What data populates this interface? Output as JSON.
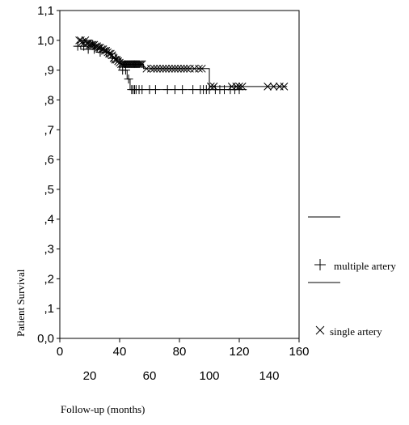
{
  "chart_data": {
    "type": "line",
    "xlabel": "Follow-up (months)",
    "ylabel": "Patient Survival",
    "xlim": [
      0,
      160
    ],
    "ylim": [
      0.0,
      1.1
    ],
    "x_ticks_major": [
      "0",
      "40",
      "80",
      "120",
      "160"
    ],
    "x_ticks_minor": [
      "20",
      "60",
      "100",
      "140"
    ],
    "y_ticks": [
      "0,0",
      ",1",
      ",2",
      ",3",
      ",4",
      ",5",
      ",6",
      ",7",
      ",8",
      ",9",
      "1,0",
      "1,1"
    ],
    "grid": false,
    "legend_position": "right",
    "series": [
      {
        "name": "multiple artery",
        "marker": "plus",
        "steps": [
          [
            10,
            0.98
          ],
          [
            14,
            0.97
          ],
          [
            25,
            0.96
          ],
          [
            34,
            0.94
          ],
          [
            40,
            0.9
          ],
          [
            45,
            0.87
          ],
          [
            47,
            0.835
          ],
          [
            97,
            0.835
          ],
          [
            125,
            0.835
          ]
        ],
        "censored": [
          [
            12,
            0.98
          ],
          [
            16,
            0.98
          ],
          [
            19,
            0.97
          ],
          [
            23,
            0.97
          ],
          [
            27,
            0.96
          ],
          [
            31,
            0.96
          ],
          [
            35,
            0.94
          ],
          [
            38,
            0.94
          ],
          [
            42,
            0.9
          ],
          [
            44,
            0.9
          ],
          [
            46,
            0.87
          ],
          [
            48,
            0.835
          ],
          [
            49,
            0.835
          ],
          [
            50,
            0.835
          ],
          [
            51,
            0.835
          ],
          [
            53,
            0.835
          ],
          [
            55,
            0.835
          ],
          [
            60,
            0.835
          ],
          [
            64,
            0.835
          ],
          [
            72,
            0.835
          ],
          [
            77,
            0.835
          ],
          [
            82,
            0.835
          ],
          [
            89,
            0.835
          ],
          [
            94,
            0.835
          ],
          [
            96,
            0.835
          ],
          [
            98,
            0.835
          ],
          [
            100,
            0.835
          ],
          [
            104,
            0.835
          ],
          [
            107,
            0.835
          ],
          [
            110,
            0.835
          ],
          [
            114,
            0.835
          ],
          [
            117,
            0.835
          ],
          [
            120,
            0.835
          ]
        ]
      },
      {
        "name": "single artery",
        "marker": "x",
        "steps": [
          [
            13,
            1.0
          ],
          [
            22,
            0.985
          ],
          [
            28,
            0.97
          ],
          [
            33,
            0.955
          ],
          [
            37,
            0.935
          ],
          [
            41,
            0.92
          ],
          [
            56,
            0.905
          ],
          [
            96,
            0.905
          ],
          [
            100,
            0.845
          ],
          [
            152,
            0.845
          ]
        ],
        "censored": [
          [
            13,
            1.0
          ],
          [
            14,
            1.0
          ],
          [
            15,
            0.995
          ],
          [
            16,
            0.99
          ],
          [
            17,
            1.0
          ],
          [
            18,
            0.99
          ],
          [
            19,
            0.99
          ],
          [
            20,
            0.985
          ],
          [
            21,
            0.985
          ],
          [
            22,
            0.985
          ],
          [
            23,
            0.985
          ],
          [
            24,
            0.98
          ],
          [
            25,
            0.98
          ],
          [
            26,
            0.975
          ],
          [
            27,
            0.975
          ],
          [
            28,
            0.97
          ],
          [
            29,
            0.97
          ],
          [
            30,
            0.965
          ],
          [
            31,
            0.965
          ],
          [
            32,
            0.96
          ],
          [
            33,
            0.955
          ],
          [
            34,
            0.955
          ],
          [
            35,
            0.95
          ],
          [
            36,
            0.94
          ],
          [
            37,
            0.935
          ],
          [
            38,
            0.935
          ],
          [
            39,
            0.93
          ],
          [
            40,
            0.925
          ],
          [
            41,
            0.92
          ],
          [
            42,
            0.92
          ],
          [
            43,
            0.92
          ],
          [
            44,
            0.92
          ],
          [
            45,
            0.92
          ],
          [
            46,
            0.92
          ],
          [
            47,
            0.92
          ],
          [
            48,
            0.92
          ],
          [
            49,
            0.92
          ],
          [
            50,
            0.92
          ],
          [
            51,
            0.92
          ],
          [
            52,
            0.92
          ],
          [
            53,
            0.92
          ],
          [
            54,
            0.92
          ],
          [
            55,
            0.92
          ],
          [
            58,
            0.905
          ],
          [
            61,
            0.905
          ],
          [
            63,
            0.905
          ],
          [
            65,
            0.905
          ],
          [
            67,
            0.905
          ],
          [
            69,
            0.905
          ],
          [
            71,
            0.905
          ],
          [
            73,
            0.905
          ],
          [
            75,
            0.905
          ],
          [
            77,
            0.905
          ],
          [
            79,
            0.905
          ],
          [
            81,
            0.905
          ],
          [
            83,
            0.905
          ],
          [
            85,
            0.905
          ],
          [
            87,
            0.905
          ],
          [
            90,
            0.905
          ],
          [
            93,
            0.905
          ],
          [
            95,
            0.905
          ],
          [
            101,
            0.845
          ],
          [
            103,
            0.845
          ],
          [
            115,
            0.845
          ],
          [
            118,
            0.845
          ],
          [
            120,
            0.845
          ],
          [
            122,
            0.845
          ],
          [
            139,
            0.845
          ],
          [
            143,
            0.845
          ],
          [
            147,
            0.845
          ],
          [
            150,
            0.845
          ]
        ]
      }
    ]
  }
}
